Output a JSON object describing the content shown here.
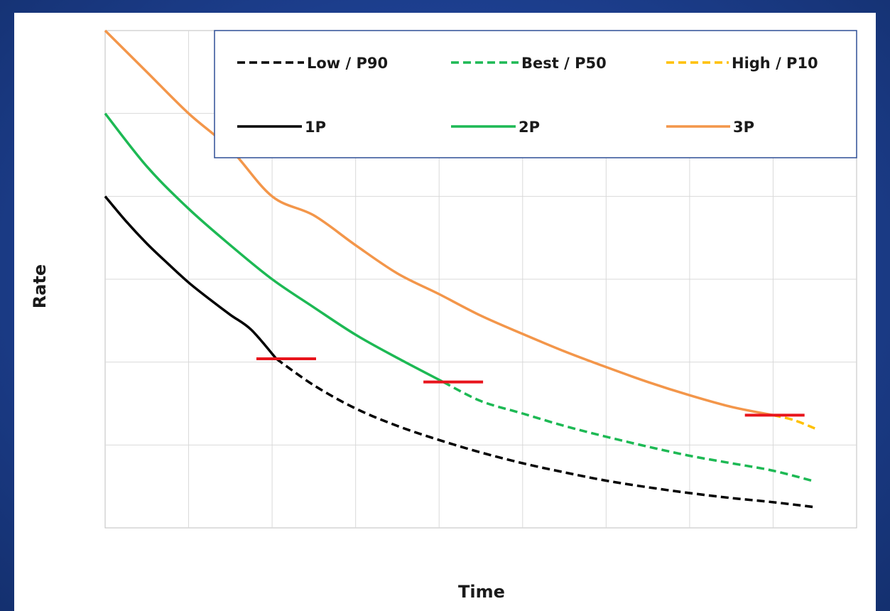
{
  "chart_data": {
    "type": "line",
    "title": "",
    "xlabel": "Time",
    "ylabel": "Rate",
    "xlim": [
      0,
      9
    ],
    "ylim": [
      0,
      6
    ],
    "grid": true,
    "tick_labels_shown": false,
    "legend_placement": "top-right",
    "legend": [
      "Low / P90",
      "Best / P50",
      "High / P10",
      "1P",
      "2P",
      "3P"
    ],
    "series": [
      {
        "name": "1P",
        "style": "solid",
        "color": "#000000",
        "x": [
          0,
          0.25,
          0.5,
          0.75,
          1,
          1.25,
          1.5,
          1.75,
          2.05
        ],
        "y": [
          4.0,
          3.7,
          3.43,
          3.19,
          2.96,
          2.76,
          2.57,
          2.39,
          2.04
        ]
      },
      {
        "name": "Low / P90",
        "style": "dashed",
        "color": "#000000",
        "x": [
          2.05,
          2.5,
          3,
          3.5,
          4,
          4.5,
          5,
          5.5,
          6,
          6.5,
          7,
          7.5,
          8,
          8.5
        ],
        "y": [
          2.04,
          1.72,
          1.44,
          1.23,
          1.06,
          0.91,
          0.78,
          0.67,
          0.57,
          0.49,
          0.42,
          0.36,
          0.31,
          0.25
        ]
      },
      {
        "name": "2P",
        "style": "solid",
        "color": "#1db954",
        "x": [
          0,
          0.5,
          1,
          1.5,
          2,
          2.5,
          3,
          3.5,
          4.05
        ],
        "y": [
          5.0,
          4.36,
          3.85,
          3.41,
          3.0,
          2.66,
          2.33,
          2.05,
          1.76
        ]
      },
      {
        "name": "Best / P50",
        "style": "dashed",
        "color": "#1db954",
        "x": [
          4.05,
          4.5,
          5,
          5.5,
          6,
          6.5,
          7,
          7.5,
          8,
          8.5
        ],
        "y": [
          1.76,
          1.53,
          1.38,
          1.23,
          1.1,
          0.98,
          0.87,
          0.78,
          0.69,
          0.56
        ]
      },
      {
        "name": "3P",
        "style": "solid",
        "color": "#f3964a",
        "x": [
          0,
          0.5,
          1,
          1.5,
          2,
          2.5,
          3,
          3.5,
          4,
          4.5,
          5,
          5.5,
          6,
          6.5,
          7,
          7.5,
          8
        ],
        "y": [
          6.0,
          5.5,
          5.0,
          4.57,
          4.0,
          3.77,
          3.41,
          3.07,
          2.82,
          2.56,
          2.34,
          2.13,
          1.94,
          1.76,
          1.6,
          1.46,
          1.36
        ]
      },
      {
        "name": "High / P10",
        "style": "dashed",
        "color": "#ffc000",
        "x": [
          8,
          8.25,
          8.5
        ],
        "y": [
          1.36,
          1.3,
          1.2
        ]
      }
    ],
    "markers": [
      {
        "x": 2.05,
        "y": 2.04,
        "color": "#e8141c"
      },
      {
        "x": 4.05,
        "y": 1.76,
        "color": "#e8141c"
      },
      {
        "x": 7.9,
        "y": 1.36,
        "color": "#e8141c"
      }
    ]
  }
}
